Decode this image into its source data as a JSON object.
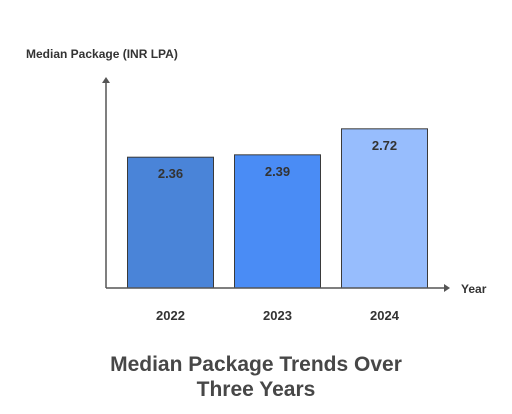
{
  "chart_data": {
    "type": "bar",
    "title_lines": [
      "Median Package Trends Over",
      "Three Years"
    ],
    "ylabel": "Median Package (INR LPA)",
    "xlabel": "Year",
    "categories": [
      "2022",
      "2023",
      "2024"
    ],
    "values": [
      2.36,
      2.39,
      2.72
    ],
    "value_labels": [
      "2.36",
      "2.39",
      "2.72"
    ],
    "colors": [
      "#4a84d8",
      "#4a8cf5",
      "#97bdfd"
    ],
    "axis_color": "#555555",
    "bar_outline_color": "#3a3a3a",
    "grid": false,
    "legend": "none"
  }
}
